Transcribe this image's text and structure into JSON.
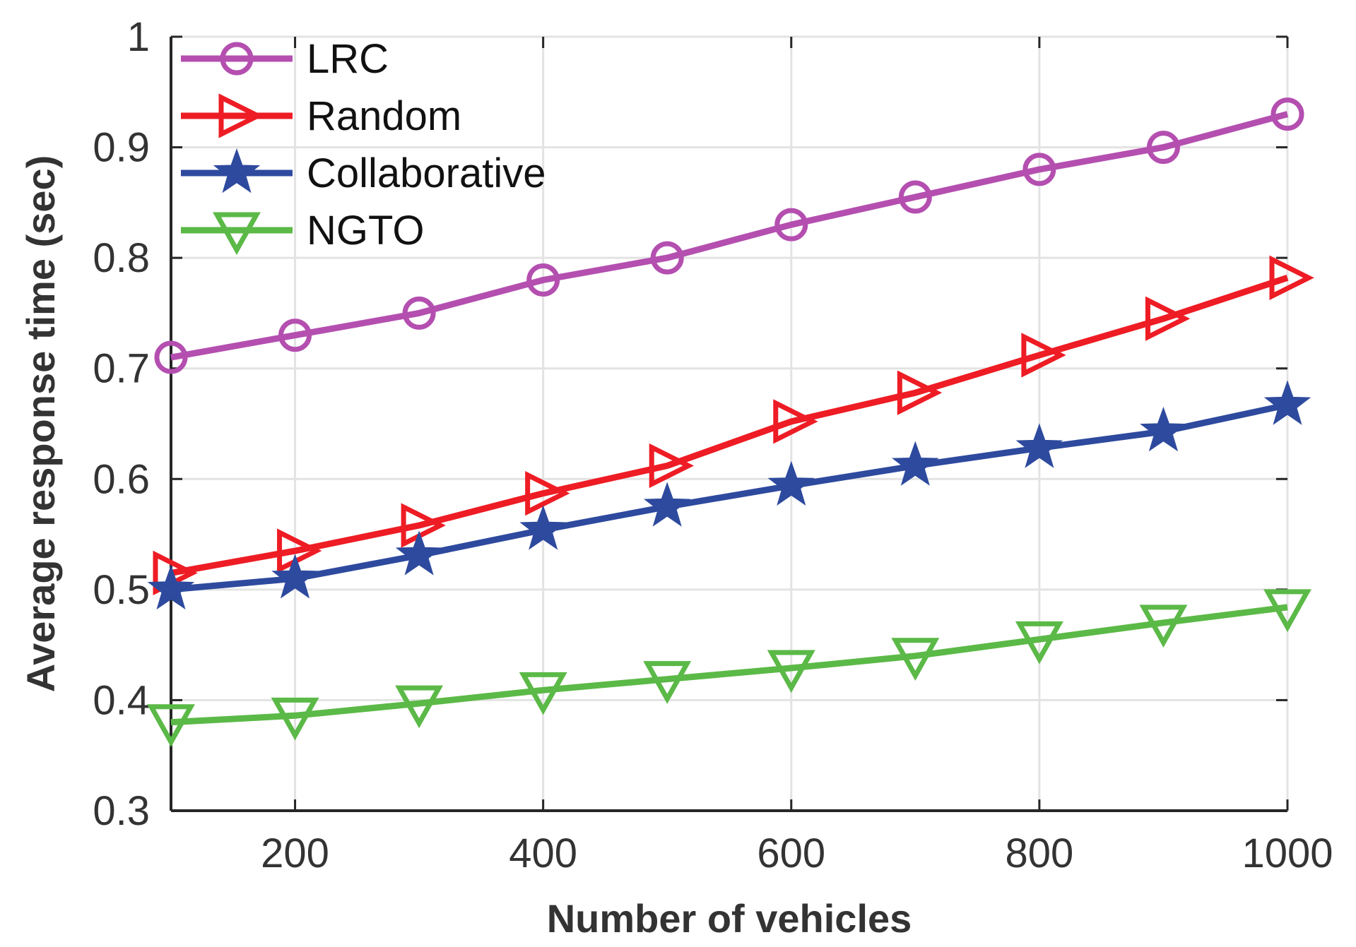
{
  "chart_data": {
    "type": "line",
    "title": "",
    "xlabel": "Number of vehicles",
    "ylabel": "Average response time (sec)",
    "xlim": [
      100,
      1000
    ],
    "ylim": [
      0.3,
      1.0
    ],
    "xticks": [
      200,
      400,
      600,
      800,
      1000
    ],
    "xtick_labels": [
      "200",
      "400",
      "600",
      "800",
      "1000"
    ],
    "yticks": [
      0.3,
      0.4,
      0.5,
      0.6,
      0.7,
      0.8,
      0.9,
      1.0
    ],
    "ytick_labels": [
      "0.3",
      "0.4",
      "0.5",
      "0.6",
      "0.7",
      "0.8",
      "0.9",
      "1"
    ],
    "grid": true,
    "legend_position": "top-left",
    "x": [
      100,
      200,
      300,
      400,
      500,
      600,
      700,
      800,
      900,
      1000
    ],
    "series": [
      {
        "name": "LRC",
        "color": "#b44fb0",
        "marker": "circle",
        "values": [
          0.71,
          0.73,
          0.75,
          0.78,
          0.8,
          0.83,
          0.855,
          0.88,
          0.9,
          0.93
        ]
      },
      {
        "name": "Random",
        "color": "#ee1c24",
        "marker": "triangle-right",
        "values": [
          0.515,
          0.535,
          0.558,
          0.587,
          0.612,
          0.652,
          0.678,
          0.712,
          0.745,
          0.782
        ]
      },
      {
        "name": "Collaborative",
        "color": "#2e4a9e",
        "marker": "star",
        "values": [
          0.5,
          0.51,
          0.531,
          0.554,
          0.575,
          0.594,
          0.612,
          0.628,
          0.643,
          0.667
        ]
      },
      {
        "name": "NGTO",
        "color": "#5bb947",
        "marker": "triangle-down",
        "values": [
          0.38,
          0.386,
          0.397,
          0.409,
          0.419,
          0.429,
          0.44,
          0.455,
          0.47,
          0.484
        ]
      }
    ]
  }
}
